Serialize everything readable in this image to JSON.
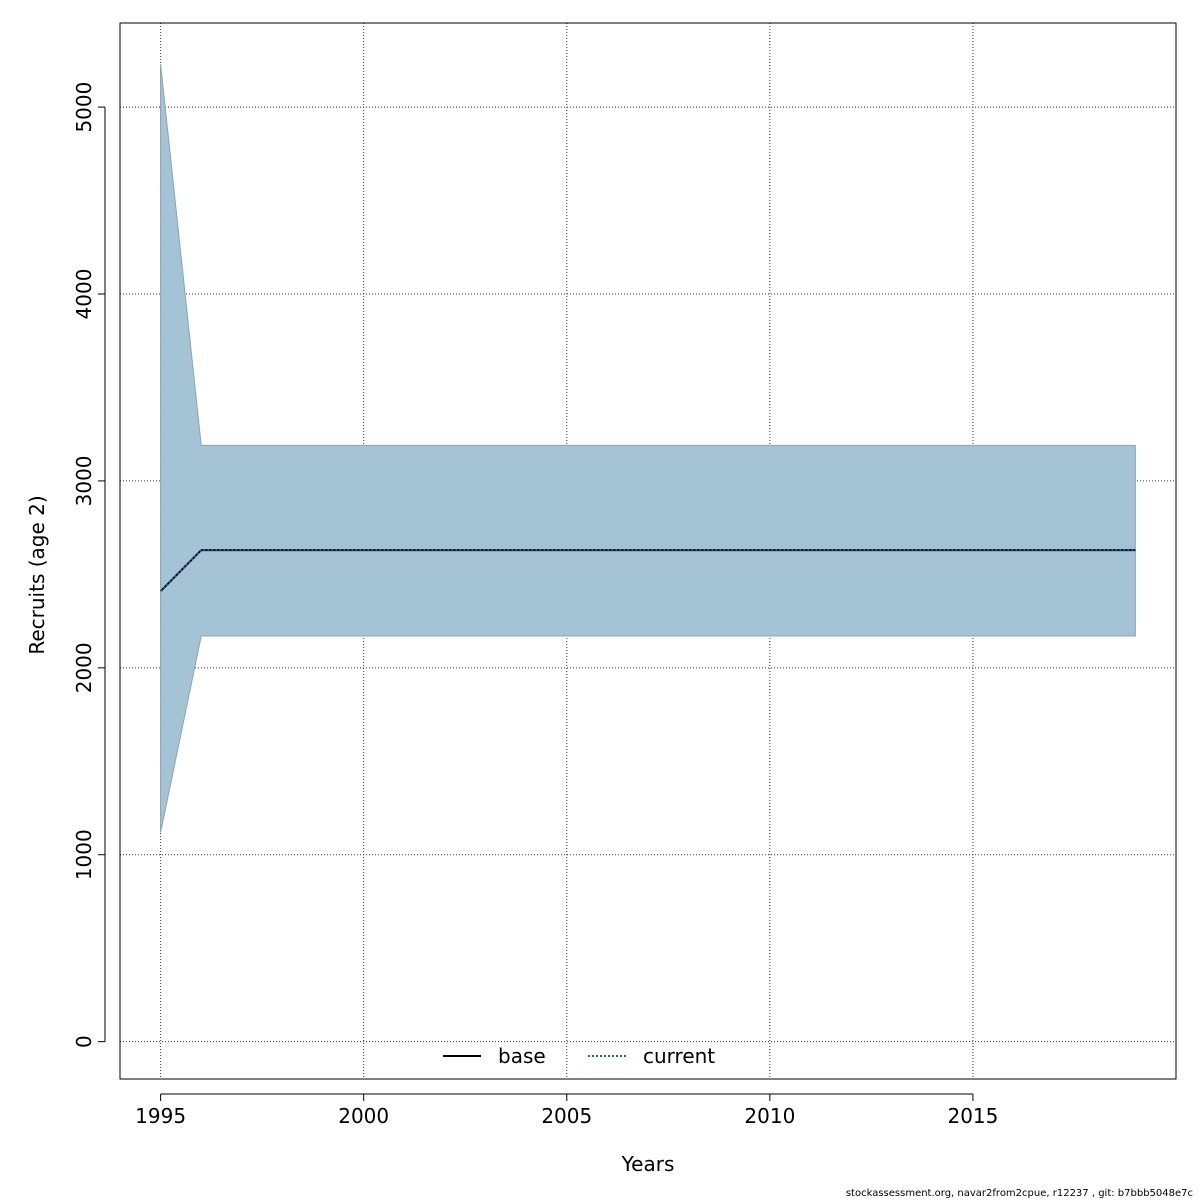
{
  "chart_data": {
    "type": "line",
    "xlabel": "Years",
    "ylabel": "Recruits (age 2)",
    "xlim": [
      1994,
      2020
    ],
    "ylim": [
      -200,
      5450
    ],
    "x_ticks": [
      1995,
      2000,
      2005,
      2010,
      2015
    ],
    "y_ticks": [
      0,
      1000,
      2000,
      3000,
      4000,
      5000
    ],
    "grid": true,
    "legend_position": "bottom-center",
    "x": [
      1995,
      1996,
      1997,
      1998,
      1999,
      2000,
      2001,
      2002,
      2003,
      2004,
      2005,
      2006,
      2007,
      2008,
      2009,
      2010,
      2011,
      2012,
      2013,
      2014,
      2015,
      2016,
      2017,
      2018,
      2019
    ],
    "band": {
      "name": "current",
      "color": "#a4c4d5",
      "lower": [
        1120,
        2170,
        2170,
        2170,
        2170,
        2170,
        2170,
        2170,
        2170,
        2170,
        2170,
        2170,
        2170,
        2170,
        2170,
        2170,
        2170,
        2170,
        2170,
        2170,
        2170,
        2170,
        2170,
        2170,
        2170
      ],
      "upper": [
        5230,
        3190,
        3190,
        3190,
        3190,
        3190,
        3190,
        3190,
        3190,
        3190,
        3190,
        3190,
        3190,
        3190,
        3190,
        3190,
        3190,
        3190,
        3190,
        3190,
        3190,
        3190,
        3190,
        3190,
        3190
      ]
    },
    "series": [
      {
        "name": "base",
        "color": "#000000",
        "style": "solid",
        "values": [
          2410,
          2630,
          2630,
          2630,
          2630,
          2630,
          2630,
          2630,
          2630,
          2630,
          2630,
          2630,
          2630,
          2630,
          2630,
          2630,
          2630,
          2630,
          2630,
          2630,
          2630,
          2630,
          2630,
          2630,
          2630
        ]
      },
      {
        "name": "current",
        "color": "#1f5fa0",
        "style": "dotted",
        "values": [
          2410,
          2630,
          2630,
          2630,
          2630,
          2630,
          2630,
          2630,
          2630,
          2630,
          2630,
          2630,
          2630,
          2630,
          2630,
          2630,
          2630,
          2630,
          2630,
          2630,
          2630,
          2630,
          2630,
          2630,
          2630
        ]
      }
    ]
  },
  "footer": {
    "credit": "stockassessment.org, navar2from2cpue, r12237 , git: b7bbb5048e7c"
  }
}
